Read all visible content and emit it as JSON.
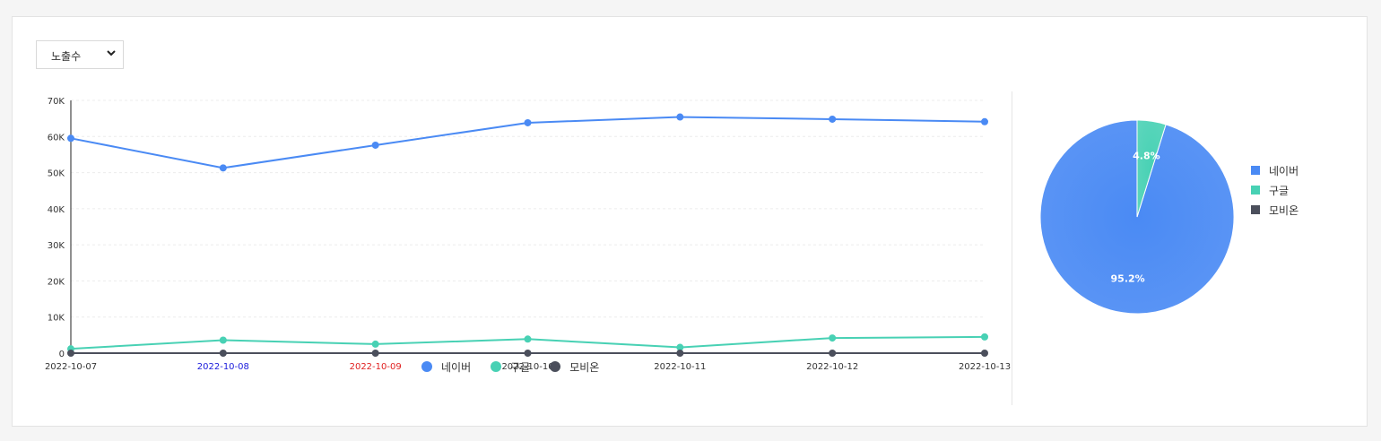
{
  "selector": {
    "value": "노출수"
  },
  "colors": {
    "naver": "#4a8af4",
    "google": "#48d1b4",
    "mobion": "#4b4f5c",
    "weekend_sat": "#1a1adb",
    "weekend_sun": "#e02020"
  },
  "chart_data": [
    {
      "type": "line",
      "x": [
        "2022-10-07",
        "2022-10-08",
        "2022-10-09",
        "2022-10-10",
        "2022-10-11",
        "2022-10-12",
        "2022-10-13"
      ],
      "x_tick_colors": [
        "#333333",
        "#1a1adb",
        "#e02020",
        "#333333",
        "#333333",
        "#333333",
        "#333333"
      ],
      "ylim": [
        0,
        70000
      ],
      "y_ticks": [
        0,
        10000,
        20000,
        30000,
        40000,
        50000,
        60000,
        70000
      ],
      "y_tick_labels": [
        "0",
        "10K",
        "20K",
        "30K",
        "40K",
        "50K",
        "60K",
        "70K"
      ],
      "grid": true,
      "legend_position": "bottom",
      "series": [
        {
          "name": "네이버",
          "color": "#4a8af4",
          "values": [
            59500,
            51300,
            57600,
            63800,
            65400,
            64800,
            64100
          ]
        },
        {
          "name": "구글",
          "color": "#48d1b4",
          "values": [
            1200,
            3600,
            2500,
            3900,
            1600,
            4200,
            4500
          ]
        },
        {
          "name": "모비온",
          "color": "#4b4f5c",
          "values": [
            0,
            0,
            0,
            0,
            0,
            0,
            0
          ]
        }
      ]
    },
    {
      "type": "pie",
      "legend_position": "right",
      "slices": [
        {
          "name": "네이버",
          "value": 95.2,
          "label": "95.2%",
          "color": "#4a8af4"
        },
        {
          "name": "구글",
          "value": 4.8,
          "label": "4.8%",
          "color": "#48d1b4"
        },
        {
          "name": "모비온",
          "value": 0,
          "label": "",
          "color": "#4b4f5c"
        }
      ]
    }
  ]
}
